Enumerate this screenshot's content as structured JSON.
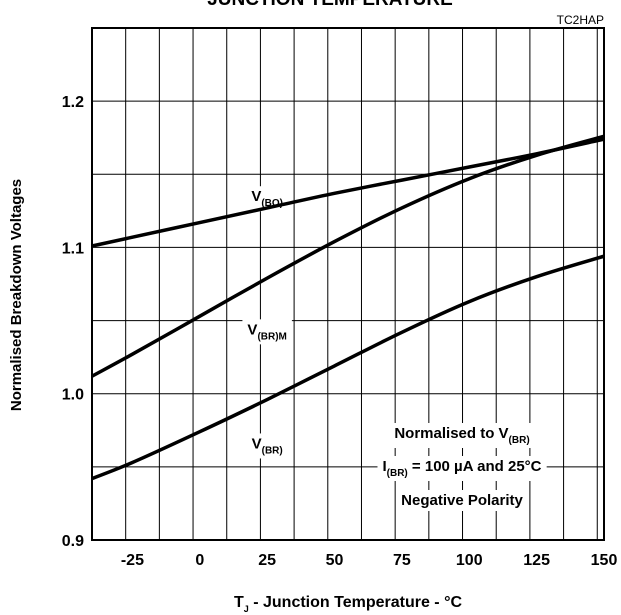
{
  "chart_data": {
    "type": "line",
    "title": "JUNCTION TEMPERATURE",
    "figure_ref": "TC2HAP",
    "xlabel": {
      "main": "T",
      "sub": "J",
      "rest": " - Junction Temperature - °C"
    },
    "ylabel": "Normalised Breakdown Voltages",
    "xlim": [
      -40,
      150
    ],
    "ylim": [
      0.9,
      1.25
    ],
    "xticks": [
      -25,
      0,
      25,
      50,
      75,
      100,
      125,
      150
    ],
    "yticks": [
      0.9,
      1.0,
      1.1,
      1.2
    ],
    "ytick_labels": [
      "0.9",
      "1.0",
      "1.1",
      "1.2"
    ],
    "grid": true,
    "series": [
      {
        "name_main": "V",
        "name_sub": "(BO)",
        "x": [
          -40,
          -25,
          0,
          25,
          50,
          75,
          100,
          125,
          150
        ],
        "y": [
          1.101,
          1.107,
          1.117,
          1.127,
          1.137,
          1.146,
          1.155,
          1.164,
          1.174
        ]
      },
      {
        "name_main": "V",
        "name_sub": "(BR)M",
        "x": [
          -40,
          -25,
          0,
          25,
          50,
          75,
          100,
          125,
          150
        ],
        "y": [
          1.012,
          1.027,
          1.053,
          1.079,
          1.104,
          1.127,
          1.147,
          1.163,
          1.176
        ]
      },
      {
        "name_main": "V",
        "name_sub": "(BR)",
        "x": [
          -40,
          -25,
          0,
          25,
          50,
          75,
          100,
          125,
          150
        ],
        "y": [
          0.942,
          0.953,
          0.974,
          0.996,
          1.019,
          1.042,
          1.063,
          1.08,
          1.094
        ]
      }
    ],
    "annotation": {
      "line1_main": "Normalised to V",
      "line1_sub": "(BR)",
      "line2_main": "I",
      "line2_sub": "(BR)",
      "line2_rest": " = 100 µA and 25°C",
      "line3": "Negative Polarity"
    }
  }
}
